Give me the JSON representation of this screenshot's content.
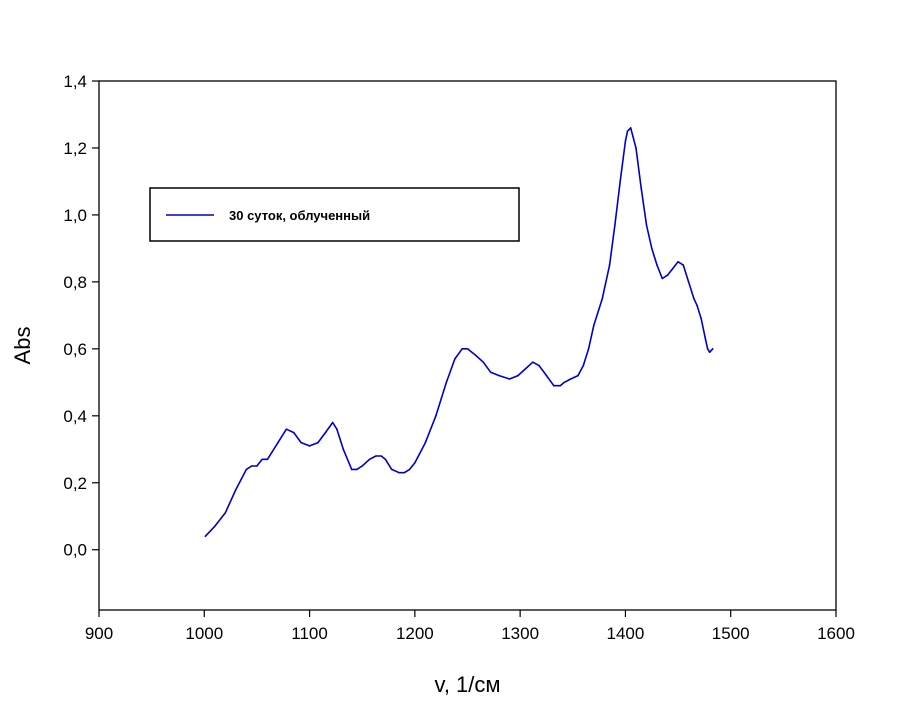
{
  "chart_data": {
    "type": "line",
    "xlabel": "v, 1/см",
    "ylabel": "Abs",
    "xlim": [
      900,
      1600
    ],
    "ylim": [
      -0.18,
      1.4
    ],
    "xticks": [
      900,
      1000,
      1100,
      1200,
      1300,
      1400,
      1500,
      1600
    ],
    "xtick_labels": [
      "900",
      "1000",
      "1100",
      "1200",
      "1300",
      "1400",
      "1500",
      "1600"
    ],
    "yticks": [
      0.0,
      0.2,
      0.4,
      0.6,
      0.8,
      1.0,
      1.2,
      1.4
    ],
    "ytick_labels": [
      "0,0",
      "0,2",
      "0,4",
      "0,6",
      "0,8",
      "1,0",
      "1,2",
      "1,4"
    ],
    "grid": false,
    "legend_position": "upper-left",
    "series": [
      {
        "name": "30 суток, облученный",
        "color": "#0000cc",
        "x": [
          1001,
          1010,
          1020,
          1030,
          1040,
          1045,
          1050,
          1055,
          1060,
          1070,
          1078,
          1085,
          1092,
          1100,
          1108,
          1115,
          1122,
          1126,
          1132,
          1140,
          1145,
          1150,
          1157,
          1163,
          1168,
          1172,
          1178,
          1185,
          1190,
          1195,
          1200,
          1210,
          1220,
          1230,
          1238,
          1245,
          1250,
          1258,
          1265,
          1272,
          1280,
          1290,
          1298,
          1305,
          1312,
          1318,
          1325,
          1332,
          1338,
          1342,
          1348,
          1355,
          1360,
          1365,
          1370,
          1378,
          1385,
          1390,
          1395,
          1400,
          1402,
          1405,
          1410,
          1415,
          1420,
          1425,
          1430,
          1435,
          1440,
          1445,
          1450,
          1455,
          1460,
          1465,
          1468,
          1472,
          1476,
          1478,
          1480,
          1483
        ],
        "y": [
          0.04,
          0.07,
          0.11,
          0.18,
          0.24,
          0.25,
          0.25,
          0.27,
          0.27,
          0.32,
          0.36,
          0.35,
          0.32,
          0.31,
          0.32,
          0.35,
          0.38,
          0.36,
          0.3,
          0.24,
          0.24,
          0.25,
          0.27,
          0.28,
          0.28,
          0.27,
          0.24,
          0.23,
          0.23,
          0.24,
          0.26,
          0.32,
          0.4,
          0.5,
          0.57,
          0.6,
          0.6,
          0.58,
          0.56,
          0.53,
          0.52,
          0.51,
          0.52,
          0.54,
          0.56,
          0.55,
          0.52,
          0.49,
          0.49,
          0.5,
          0.51,
          0.52,
          0.55,
          0.6,
          0.67,
          0.75,
          0.85,
          0.97,
          1.1,
          1.22,
          1.25,
          1.26,
          1.2,
          1.08,
          0.97,
          0.9,
          0.85,
          0.81,
          0.82,
          0.84,
          0.86,
          0.85,
          0.8,
          0.75,
          0.73,
          0.69,
          0.63,
          0.6,
          0.59,
          0.6
        ]
      }
    ]
  }
}
